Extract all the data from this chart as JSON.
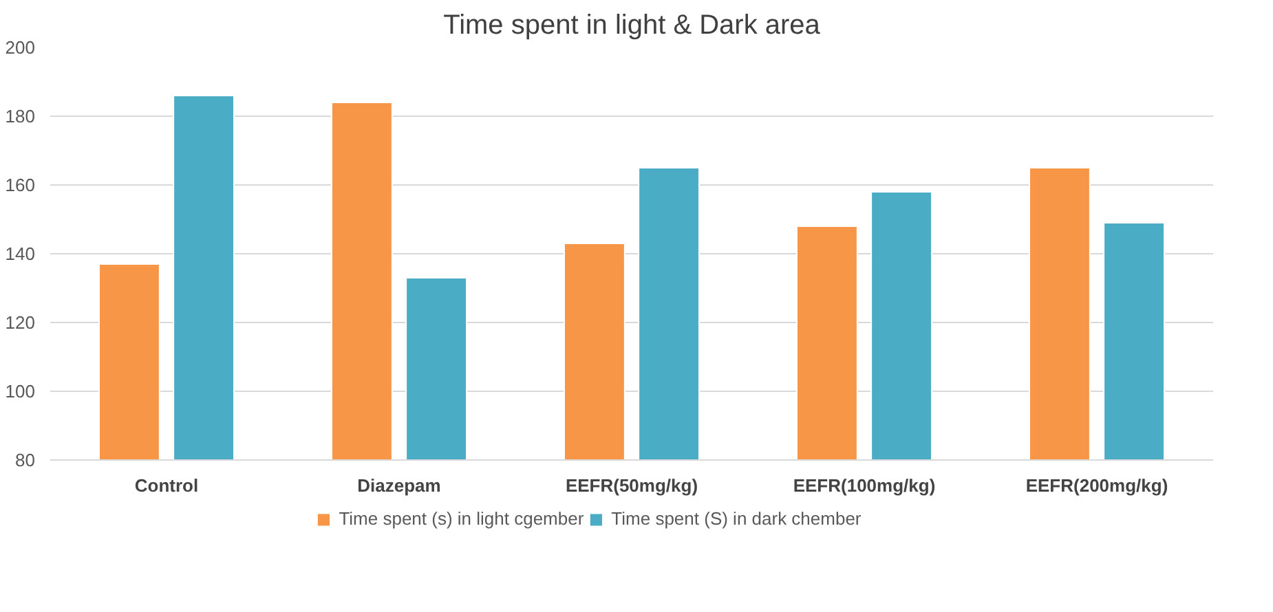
{
  "chart_data": {
    "type": "bar",
    "title": "Time spent in light & Dark area",
    "categories": [
      "Control",
      "Diazepam",
      "EEFR(50mg/kg)",
      "EEFR(100mg/kg)",
      "EEFR(200mg/kg)"
    ],
    "series": [
      {
        "name": "Time spent (s) in light cgember",
        "color": "#f79646",
        "values": [
          137,
          184,
          143,
          148,
          165
        ]
      },
      {
        "name": "Time spent (S) in dark chember",
        "color": "#4bacc6",
        "values": [
          186,
          133,
          165,
          158,
          149
        ]
      }
    ],
    "ylim": [
      80,
      200
    ],
    "yticks": [
      80,
      100,
      120,
      140,
      160,
      180,
      200
    ],
    "grid": "y",
    "legend": "bottom"
  }
}
